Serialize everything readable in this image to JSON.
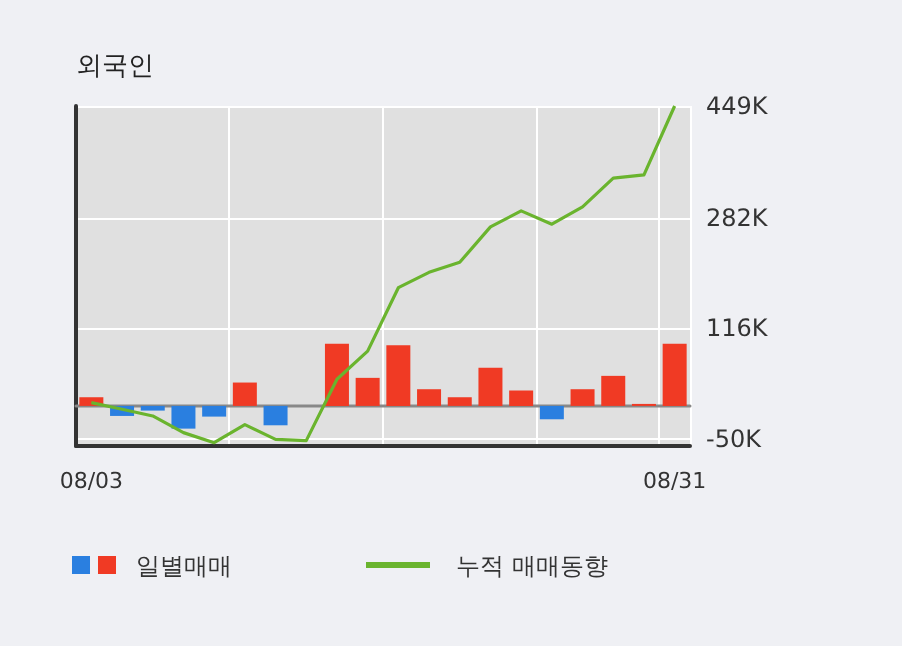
{
  "chart_data": {
    "type": "bar",
    "title": "외국인",
    "categories": [
      "08/03",
      null,
      null,
      null,
      null,
      null,
      null,
      null,
      null,
      null,
      null,
      null,
      null,
      null,
      null,
      null,
      null,
      null,
      null,
      "08/31"
    ],
    "series": [
      {
        "name": "일별매매",
        "colors": [
          "#f03a24",
          "#2a7fe0",
          "#2a7fe0",
          "#2a7fe0",
          "#2a7fe0",
          "#f03a24",
          "#2a7fe0",
          "#f03a24",
          "#f03a24",
          "#f03a24",
          "#f03a24",
          "#f03a24",
          "#f03a24",
          "#f03a24",
          "#f03a24",
          "#2a7fe0",
          "#f03a24",
          "#f03a24",
          "#f03a24",
          "#f03a24"
        ],
        "values": [
          13,
          -15,
          -7,
          -34,
          -16,
          35,
          -29,
          0,
          93,
          42,
          91,
          25,
          13,
          57,
          23,
          -20,
          25,
          45,
          3,
          93
        ]
      },
      {
        "name": "누적 매매동향",
        "type": "line",
        "color": "#6ab42e",
        "values": [
          5,
          -5,
          -15,
          -40,
          -55,
          -28,
          -50,
          -52,
          40,
          82,
          177,
          200,
          215,
          268,
          292,
          272,
          298,
          341,
          346,
          449
        ]
      }
    ],
    "ylim": [
      -60,
      449
    ],
    "yticks": [
      {
        "value": -50,
        "label": "-50K"
      },
      {
        "value": 116,
        "label": "116K"
      },
      {
        "value": 282,
        "label": "282K"
      },
      {
        "value": 449,
        "label": "449K"
      }
    ],
    "grid": true,
    "legend": "bottom",
    "marker": "none"
  }
}
